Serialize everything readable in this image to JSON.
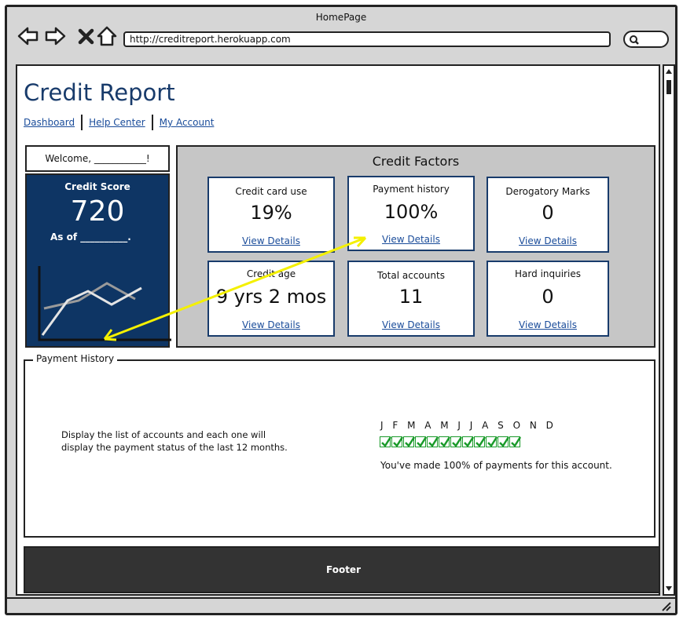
{
  "window": {
    "title": "HomePage",
    "url": "http://creditreport.herokuapp.com"
  },
  "page": {
    "title": "Credit Report",
    "nav": [
      "Dashboard",
      "Help Center",
      "My Account"
    ]
  },
  "welcome": "Welcome, ___________!",
  "score": {
    "label": "Credit Score",
    "value": "720",
    "as_of": "As of __________."
  },
  "factors": {
    "title": "Credit Factors",
    "cards": [
      {
        "label": "Credit card use",
        "value": "19%",
        "link": "View Details"
      },
      {
        "label": "Payment history",
        "value": "100%",
        "link": "View Details"
      },
      {
        "label": "Derogatory Marks",
        "value": "0",
        "link": "View Details"
      },
      {
        "label": "Credit age",
        "value": "9 yrs 2 mos",
        "link": "View Details"
      },
      {
        "label": "Total accounts",
        "value": "11",
        "link": "View Details"
      },
      {
        "label": "Hard inquiries",
        "value": "0",
        "link": "View Details"
      }
    ]
  },
  "history": {
    "legend": "Payment History",
    "description": "Display the list of accounts and each one will display the payment status of the last 12 months.",
    "months": "J F M A M J J A S O N D",
    "summary": "You've made 100% of payments for this account."
  },
  "footer": "Footer",
  "colors": {
    "brand_navy": "#0e3564",
    "link_blue": "#1a4c9a",
    "arrow_yellow": "#f4f000",
    "check_green": "#1a9a2a"
  }
}
